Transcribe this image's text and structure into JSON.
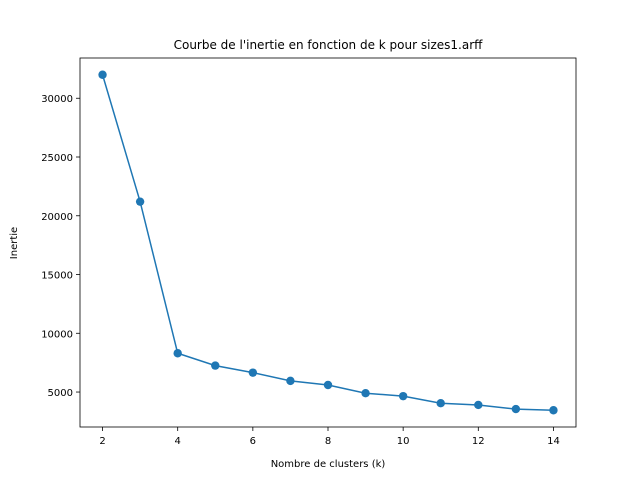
{
  "chart_data": {
    "type": "line",
    "title": "Courbe de l'inertie en fonction de k pour sizes1.arff",
    "xlabel": "Nombre de clusters (k)",
    "ylabel": "Inertie",
    "x": [
      2,
      3,
      4,
      5,
      6,
      7,
      8,
      9,
      10,
      11,
      12,
      13,
      14
    ],
    "series": [
      {
        "values": [
          32000,
          21200,
          8300,
          7250,
          6650,
          5950,
          5600,
          4900,
          4650,
          4050,
          3900,
          3550,
          3450
        ],
        "color": "#1f77b4",
        "marker": "circle"
      }
    ],
    "xlim": [
      1.4,
      14.6
    ],
    "ylim": [
      2025,
      33425
    ],
    "xticks": [
      2,
      4,
      6,
      8,
      10,
      12,
      14
    ],
    "yticks": [
      5000,
      10000,
      15000,
      20000,
      25000,
      30000
    ],
    "grid": false,
    "legend": "none"
  }
}
